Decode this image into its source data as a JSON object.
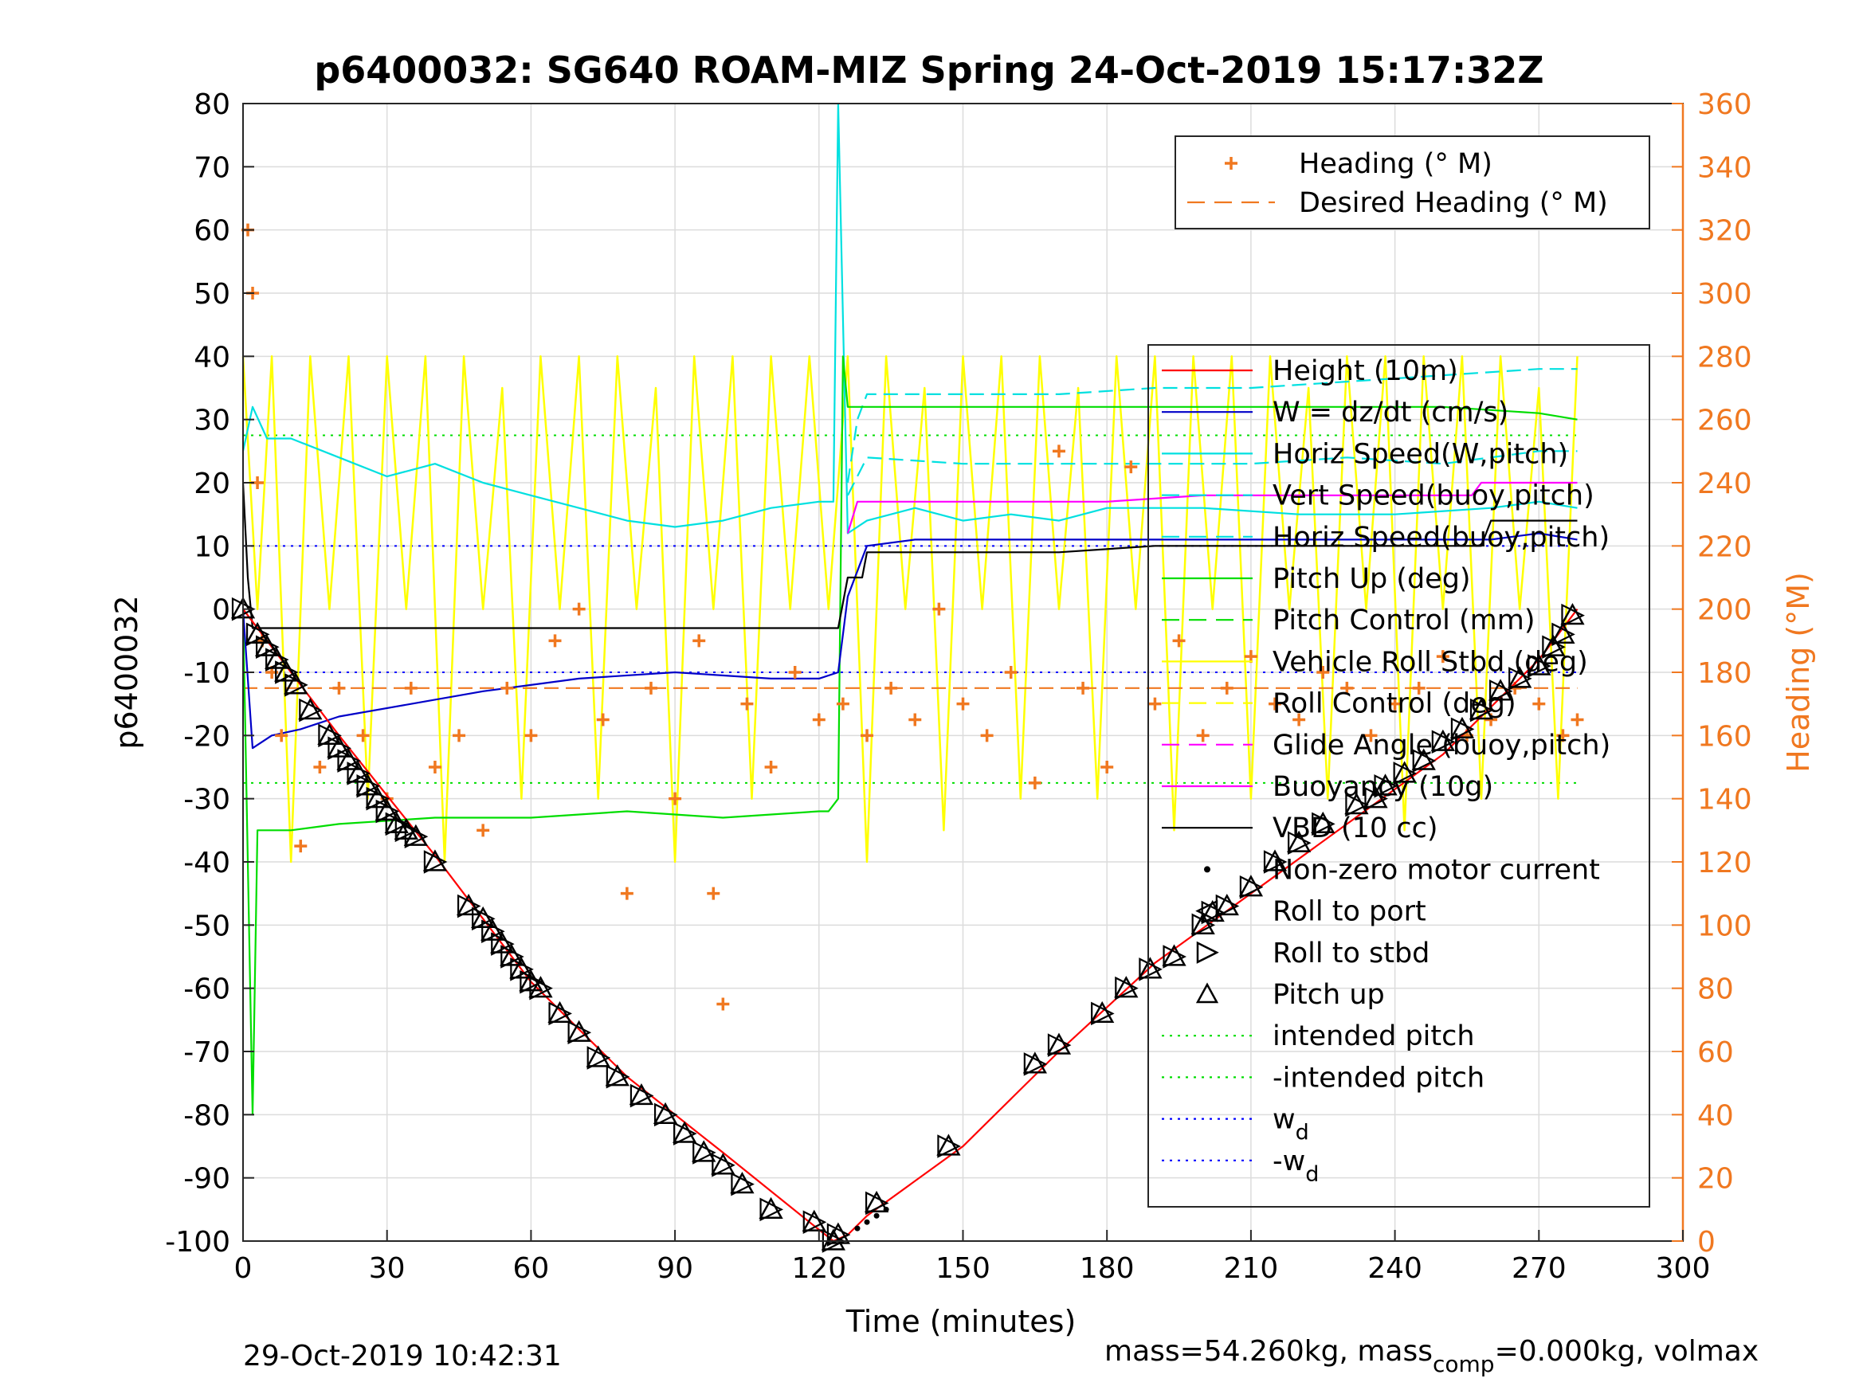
{
  "chart_data": {
    "type": "line",
    "title": "p6400032: SG640 ROAM-MIZ Spring 24-Oct-2019 15:17:32Z",
    "xlabel": "Time (minutes)",
    "ylabel_left": "p6400032",
    "ylabel_right": "Heading (°M)",
    "xlim": [
      0,
      300
    ],
    "ylim_left": [
      -100,
      80
    ],
    "ylim_right": [
      0,
      360
    ],
    "x_ticks": [
      "0",
      "30",
      "60",
      "90",
      "120",
      "150",
      "180",
      "210",
      "240",
      "270",
      "300"
    ],
    "y_ticks_left": [
      "80",
      "70",
      "60",
      "50",
      "40",
      "30",
      "20",
      "10",
      "0",
      "-10",
      "-20",
      "-30",
      "-40",
      "-50",
      "-60",
      "-70",
      "-80",
      "-90",
      "-100"
    ],
    "y_ticks_right": [
      "360",
      "340",
      "320",
      "300",
      "280",
      "260",
      "240",
      "220",
      "200",
      "180",
      "160",
      "140",
      "120",
      "100",
      "80",
      "60",
      "40",
      "20",
      "0"
    ],
    "grid": true,
    "footer_left": "29-Oct-2019 10:42:31",
    "footer_right": "mass=54.260kg, mass",
    "footer_right_sub": "comp",
    "footer_right_tail": "=0.000kg, volmax",
    "legend_top": [
      {
        "label": "Heading (° M)",
        "color": "#f07820",
        "style": "plus"
      },
      {
        "label": "Desired Heading (° M)",
        "color": "#f07820",
        "style": "dash"
      }
    ],
    "legend_main": [
      {
        "label": "Height (10m)",
        "color": "#ff0000",
        "style": "line"
      },
      {
        "label": "W = dz/dt (cm/s)",
        "color": "#0000c8",
        "style": "line"
      },
      {
        "label": "Horiz Speed(W,pitch)",
        "color": "#00e0e0",
        "style": "line"
      },
      {
        "label": "Vert Speed(buoy,pitch)",
        "color": "#00e0e0",
        "style": "dash"
      },
      {
        "label": "Horiz Speed(buoy,pitch)",
        "color": "#00e0e0",
        "style": "dash"
      },
      {
        "label": "Pitch Up (deg)",
        "color": "#00dd00",
        "style": "line"
      },
      {
        "label": "Pitch Control (mm)",
        "color": "#00dd00",
        "style": "dash"
      },
      {
        "label": "Vehicle Roll Stbd (deg)",
        "color": "#ffff00",
        "style": "line"
      },
      {
        "label": "Roll Control (deg)",
        "color": "#ffff00",
        "style": "dash"
      },
      {
        "label": "Glide Angle (buoy,pitch)",
        "color": "#ff00ff",
        "style": "dash"
      },
      {
        "label": "Buoyancy (10g)",
        "color": "#ff00ff",
        "style": "line"
      },
      {
        "label": "VBD (10 cc)",
        "color": "#000000",
        "style": "line"
      },
      {
        "label": "Non-zero motor current",
        "color": "#000000",
        "style": "dot"
      },
      {
        "label": "Roll to port",
        "color": "#000000",
        "style": "tri-left"
      },
      {
        "label": "Roll to stbd",
        "color": "#000000",
        "style": "tri-right"
      },
      {
        "label": "Pitch up",
        "color": "#000000",
        "style": "tri-up"
      },
      {
        "label": "intended pitch",
        "color": "#00dd00",
        "style": "dot-line"
      },
      {
        "label": "-intended pitch",
        "color": "#00dd00",
        "style": "dot-line"
      },
      {
        "label": "w",
        "sub": "d",
        "color": "#0000ff",
        "style": "dot-line"
      },
      {
        "label": "-w",
        "sub": "d",
        "color": "#0000ff",
        "style": "dot-line"
      }
    ],
    "series": [
      {
        "name": "Height (10m)",
        "axis": "left",
        "x": [
          0,
          10,
          20,
          40,
          60,
          80,
          100,
          118,
          123,
          126,
          130,
          150,
          170,
          190,
          210,
          230,
          250,
          270,
          278
        ],
        "y": [
          0,
          -10,
          -20,
          -39,
          -59,
          -74,
          -86,
          -97,
          -100,
          -99,
          -96,
          -85,
          -70,
          -56,
          -45,
          -34,
          -23,
          -8,
          0
        ]
      },
      {
        "name": "W = dz/dt (cm/s)",
        "axis": "left",
        "x": [
          0,
          2,
          6,
          12,
          20,
          35,
          50,
          70,
          90,
          110,
          120,
          124,
          126,
          130,
          140,
          160,
          180,
          200,
          220,
          240,
          260,
          270,
          278
        ],
        "y": [
          0,
          -22,
          -20,
          -19,
          -17,
          -15,
          -13,
          -11,
          -10,
          -11,
          -11,
          -10,
          2,
          10,
          11,
          11,
          11,
          11,
          11,
          11,
          11,
          12,
          11
        ]
      },
      {
        "name": "Horiz Speed(W,pitch)",
        "axis": "left",
        "x": [
          0,
          2,
          5,
          10,
          20,
          30,
          40,
          50,
          60,
          70,
          80,
          90,
          100,
          110,
          120,
          123,
          124,
          126,
          130,
          140,
          150,
          160,
          170,
          180,
          200,
          220,
          240,
          260,
          270,
          278
        ],
        "y": [
          25,
          32,
          27,
          27,
          24,
          21,
          23,
          20,
          18,
          16,
          14,
          13,
          14,
          16,
          17,
          17,
          80,
          12,
          14,
          16,
          14,
          15,
          14,
          16,
          16,
          15,
          15,
          16,
          17,
          16
        ]
      },
      {
        "name": "Vert Speed(buoy,pitch)",
        "axis": "left",
        "x": [
          126,
          128,
          130,
          150,
          170,
          190,
          210,
          230,
          250,
          270,
          278
        ],
        "y": [
          20,
          30,
          34,
          34,
          34,
          35,
          35,
          36,
          37,
          38,
          38
        ]
      },
      {
        "name": "Horiz Speed(buoy,pitch)",
        "axis": "left",
        "x": [
          126,
          130,
          150,
          170,
          190,
          210,
          230,
          250,
          270,
          278
        ],
        "y": [
          18,
          24,
          23,
          23,
          23,
          23,
          24,
          23,
          25,
          25
        ]
      },
      {
        "name": "Pitch Up (deg)",
        "axis": "left",
        "x": [
          0,
          2,
          3,
          10,
          20,
          40,
          60,
          80,
          100,
          120,
          122,
          124,
          125,
          126,
          130,
          150,
          170,
          190,
          210,
          230,
          250,
          270,
          278
        ],
        "y": [
          0,
          -80,
          -35,
          -35,
          -34,
          -33,
          -33,
          -32,
          -33,
          -32,
          -32,
          -30,
          40,
          32,
          32,
          32,
          32,
          32,
          32,
          32,
          32,
          31,
          30
        ]
      },
      {
        "name": "Buoyancy (10g)",
        "axis": "left",
        "x": [
          126,
          128,
          140,
          160,
          180,
          200,
          220,
          240,
          256,
          258,
          270,
          278
        ],
        "y": [
          12,
          17,
          17,
          17,
          17,
          18,
          18,
          18,
          18,
          20,
          20,
          20
        ]
      },
      {
        "name": "VBD (10 cc)",
        "axis": "left",
        "x": [
          0,
          1,
          2,
          10,
          40,
          80,
          110,
          124,
          126,
          129,
          130,
          150,
          170,
          190,
          210,
          230,
          250,
          258,
          260,
          270,
          278
        ],
        "y": [
          20,
          5,
          -3,
          -3,
          -3,
          -3,
          -3,
          -3,
          5,
          5,
          9,
          9,
          9,
          10,
          10,
          10,
          10,
          10,
          14,
          14,
          14
        ]
      },
      {
        "name": "Vehicle Roll Stbd (deg)",
        "axis": "left",
        "x": [
          0,
          3,
          6,
          10,
          14,
          18,
          22,
          26,
          30,
          34,
          38,
          42,
          46,
          50,
          54,
          58,
          62,
          66,
          70,
          74,
          78,
          82,
          86,
          90,
          94,
          98,
          102,
          106,
          110,
          114,
          118,
          122,
          126,
          130,
          134,
          138,
          142,
          146,
          150,
          154,
          158,
          162,
          166,
          170,
          174,
          178,
          182,
          186,
          190,
          194,
          198,
          202,
          206,
          210,
          214,
          218,
          222,
          226,
          230,
          234,
          238,
          242,
          246,
          250,
          254,
          258,
          262,
          266,
          270,
          274,
          278
        ],
        "y": [
          40,
          0,
          40,
          -40,
          40,
          0,
          40,
          -30,
          40,
          0,
          40,
          -40,
          40,
          0,
          35,
          -30,
          40,
          0,
          40,
          -30,
          40,
          0,
          35,
          -40,
          40,
          0,
          40,
          -30,
          40,
          0,
          40,
          0,
          40,
          -40,
          40,
          0,
          35,
          -35,
          40,
          0,
          40,
          -30,
          40,
          0,
          35,
          -30,
          40,
          0,
          40,
          -35,
          40,
          0,
          40,
          -30,
          40,
          0,
          35,
          -30,
          40,
          0,
          40,
          -35,
          40,
          0,
          40,
          -30,
          40,
          0,
          35,
          -30,
          40
        ]
      },
      {
        "name": "Heading (° M)",
        "axis": "right",
        "x": [
          1,
          2,
          3,
          4,
          6,
          8,
          12,
          16,
          20,
          25,
          30,
          35,
          40,
          45,
          50,
          55,
          60,
          65,
          70,
          75,
          80,
          85,
          90,
          95,
          98,
          100,
          105,
          110,
          115,
          120,
          125,
          130,
          135,
          140,
          145,
          150,
          155,
          160,
          165,
          170,
          175,
          180,
          185,
          190,
          195,
          200,
          205,
          210,
          215,
          220,
          225,
          230,
          235,
          240,
          245,
          250,
          255,
          260,
          265,
          270,
          275,
          278
        ],
        "y": [
          320,
          300,
          240,
          190,
          180,
          160,
          125,
          150,
          175,
          160,
          140,
          175,
          150,
          160,
          130,
          175,
          160,
          190,
          200,
          165,
          110,
          175,
          140,
          190,
          110,
          75,
          170,
          150,
          180,
          165,
          170,
          160,
          175,
          165,
          200,
          170,
          160,
          180,
          145,
          250,
          175,
          150,
          245,
          170,
          190,
          160,
          175,
          185,
          170,
          165,
          180,
          175,
          160,
          170,
          175,
          185,
          160,
          165,
          175,
          170,
          160,
          165
        ]
      },
      {
        "name": "Desired Heading (° M)",
        "axis": "right",
        "x": [
          0,
          278
        ],
        "y": [
          175,
          175
        ]
      }
    ],
    "reference_lines": [
      {
        "name": "intended pitch",
        "axis": "left",
        "y": 27.5,
        "color": "#00dd00"
      },
      {
        "name": "-intended pitch",
        "axis": "left",
        "y": -27.5,
        "color": "#00dd00"
      },
      {
        "name": "w_d",
        "axis": "left",
        "y": 10,
        "color": "#0000ff"
      },
      {
        "name": "-w_d",
        "axis": "left",
        "y": -10,
        "color": "#0000ff"
      }
    ],
    "markers": {
      "pitch_up_and_roll": {
        "x": [
          0,
          3,
          5,
          7,
          9,
          11,
          14,
          18,
          20,
          22,
          24,
          26,
          28,
          30,
          32,
          34,
          36,
          40,
          47,
          50,
          52,
          54,
          56,
          58,
          60,
          62,
          66,
          70,
          74,
          78,
          83,
          88,
          92,
          96,
          100,
          104,
          110,
          119,
          123,
          124,
          132,
          147,
          165,
          170,
          179,
          184,
          189,
          194,
          200,
          202,
          205,
          210,
          215,
          220,
          225,
          232,
          236,
          238,
          242,
          246,
          250,
          254,
          258,
          262,
          266,
          270,
          273,
          275,
          277
        ],
        "y": [
          0,
          -4,
          -6,
          -8,
          -10,
          -12,
          -16,
          -20,
          -22,
          -24,
          -26,
          -28,
          -30,
          -32,
          -34,
          -35,
          -36,
          -40,
          -47,
          -49,
          -51,
          -53,
          -55,
          -57,
          -59,
          -60,
          -64,
          -67,
          -71,
          -74,
          -77,
          -80,
          -83,
          -86,
          -88,
          -91,
          -95,
          -97,
          -100,
          -99,
          -94,
          -85,
          -72,
          -69,
          -64,
          -60,
          -57,
          -55,
          -50,
          -48,
          -47,
          -44,
          -40,
          -37,
          -34,
          -31,
          -30,
          -28,
          -26,
          -24,
          -21,
          -19,
          -16,
          -13,
          -11,
          -9,
          -6,
          -4,
          -1
        ]
      },
      "motor_current": {
        "x": [
          128,
          130,
          132,
          134
        ],
        "y": [
          -98,
          -97,
          -96,
          -95
        ]
      }
    }
  }
}
